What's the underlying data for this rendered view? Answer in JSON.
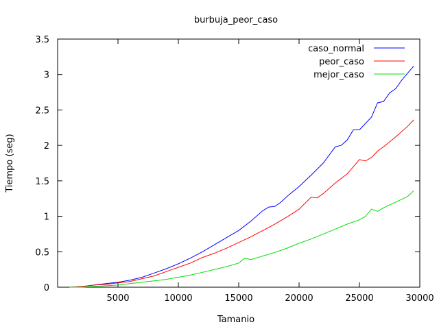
{
  "chart_data": {
    "type": "line",
    "title": "burbuja_peor_caso",
    "xlabel": "Tamanio",
    "ylabel": "Tiempo (seg)",
    "xlim": [
      0,
      30000
    ],
    "ylim": [
      0,
      3.5
    ],
    "x_ticks": [
      5000,
      10000,
      15000,
      20000,
      25000,
      30000
    ],
    "y_ticks": [
      0,
      0.5,
      1,
      1.5,
      2,
      2.5,
      3,
      3.5
    ],
    "x_tick_labels": [
      "5000",
      "10000",
      "15000",
      "20000",
      "25000",
      "30000"
    ],
    "y_tick_labels": [
      "0",
      "0.5",
      "1",
      "1.5",
      "2",
      "2.5",
      "3",
      "3.5"
    ],
    "grid": false,
    "legend_position": "top-right",
    "series": [
      {
        "name": "caso_normal",
        "color": "#0000ff",
        "x": [
          1000,
          2000,
          3000,
          4000,
          5000,
          6000,
          7000,
          8000,
          9000,
          10000,
          11000,
          12000,
          13000,
          14000,
          15000,
          16000,
          17000,
          17500,
          18000,
          18500,
          19000,
          20000,
          21000,
          22000,
          23000,
          23500,
          24000,
          24500,
          25000,
          26000,
          26500,
          27000,
          27500,
          28000,
          28500,
          29000,
          29500
        ],
        "y": [
          0.0,
          0.01,
          0.03,
          0.05,
          0.07,
          0.1,
          0.14,
          0.2,
          0.26,
          0.33,
          0.41,
          0.5,
          0.6,
          0.7,
          0.8,
          0.93,
          1.08,
          1.13,
          1.14,
          1.2,
          1.28,
          1.42,
          1.58,
          1.75,
          1.98,
          2.0,
          2.08,
          2.22,
          2.22,
          2.4,
          2.6,
          2.62,
          2.74,
          2.8,
          2.92,
          3.02,
          3.12
        ]
      },
      {
        "name": "peor_caso",
        "color": "#ff0000",
        "x": [
          1000,
          2000,
          3000,
          4000,
          5000,
          6000,
          7000,
          8000,
          9000,
          10000,
          11000,
          12000,
          13000,
          14000,
          15000,
          16000,
          17000,
          18000,
          19000,
          20000,
          21000,
          21500,
          22000,
          23000,
          24000,
          25000,
          25500,
          26000,
          26500,
          27000,
          28000,
          29000,
          29500
        ],
        "y": [
          0.0,
          0.01,
          0.03,
          0.04,
          0.06,
          0.08,
          0.12,
          0.16,
          0.22,
          0.28,
          0.34,
          0.42,
          0.48,
          0.55,
          0.63,
          0.71,
          0.8,
          0.89,
          0.99,
          1.1,
          1.27,
          1.26,
          1.32,
          1.47,
          1.6,
          1.8,
          1.78,
          1.83,
          1.92,
          1.98,
          2.12,
          2.27,
          2.36
        ]
      },
      {
        "name": "mejor_caso",
        "color": "#00dd00",
        "x": [
          1000,
          2000,
          3000,
          4000,
          5000,
          6000,
          7000,
          8000,
          9000,
          10000,
          11000,
          12000,
          13000,
          14000,
          15000,
          15500,
          16000,
          17000,
          18000,
          19000,
          20000,
          21000,
          22000,
          23000,
          24000,
          25000,
          25500,
          26000,
          26500,
          27000,
          28000,
          29000,
          29500
        ],
        "y": [
          0.0,
          0.0,
          0.01,
          0.02,
          0.03,
          0.05,
          0.07,
          0.09,
          0.11,
          0.14,
          0.17,
          0.21,
          0.25,
          0.29,
          0.34,
          0.41,
          0.39,
          0.44,
          0.49,
          0.55,
          0.62,
          0.68,
          0.75,
          0.82,
          0.89,
          0.95,
          1.0,
          1.1,
          1.07,
          1.12,
          1.2,
          1.28,
          1.36
        ]
      }
    ]
  }
}
